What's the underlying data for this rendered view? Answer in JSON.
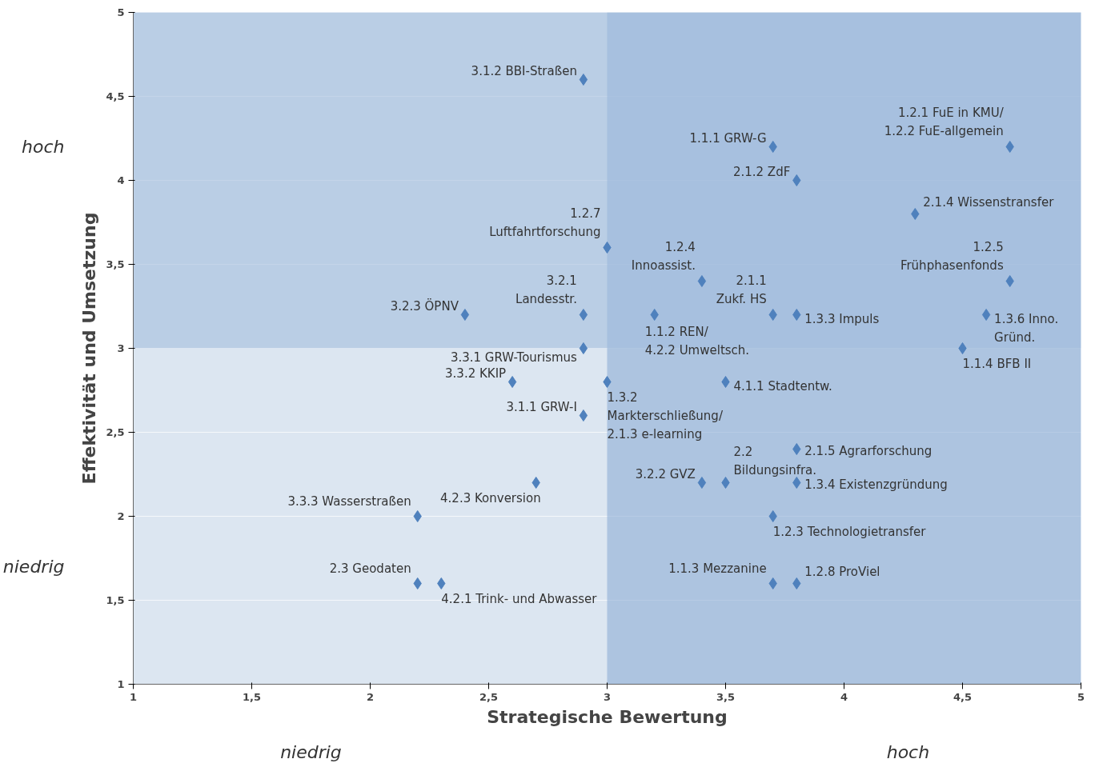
{
  "chart_data": {
    "type": "scatter",
    "xlabel": "Strategische Bewertung",
    "ylabel": "Effektivität und Umsetzung",
    "x": [
      2.9,
      3.7,
      4.7,
      3.8,
      4.3,
      3.0,
      3.4,
      4.7,
      3.7,
      3.8,
      2.4,
      2.9,
      3.2,
      4.6,
      2.9,
      4.5,
      2.6,
      3.0,
      3.5,
      2.9,
      3.8,
      2.7,
      3.4,
      3.5,
      3.8,
      2.2,
      3.7,
      2.2,
      2.3,
      3.7,
      3.8
    ],
    "series": [
      {
        "color": "#4f81bd",
        "values": [
          4.6,
          4.2,
          4.2,
          4.0,
          3.8,
          3.6,
          3.4,
          3.4,
          3.2,
          3.2,
          3.2,
          3.2,
          3.2,
          3.2,
          3.0,
          3.0,
          2.8,
          2.8,
          2.8,
          2.6,
          2.4,
          2.2,
          2.2,
          2.2,
          2.2,
          2.0,
          2.0,
          1.6,
          1.6,
          1.6,
          1.6
        ]
      }
    ],
    "marker": "diamond",
    "grid": "y",
    "xlim": [
      1,
      5
    ],
    "ylim": [
      1,
      5
    ],
    "xticks": [
      1,
      {
        "value": 1.5,
        "label": "1,5"
      },
      2,
      {
        "value": 2.5,
        "label": "2,5"
      },
      3,
      {
        "value": 3.5,
        "label": "3,5"
      },
      4,
      {
        "value": 4.5,
        "label": "4,5"
      },
      5
    ],
    "yticks": [
      1,
      {
        "value": 1.5,
        "label": "1,5"
      },
      2,
      {
        "value": 2.5,
        "label": "2,5"
      },
      3,
      {
        "value": 3.5,
        "label": "3,5"
      },
      4,
      {
        "value": 4.5,
        "label": "4,5"
      },
      5
    ],
    "bands": [
      {
        "axis": "x",
        "from": 3,
        "to": 5,
        "color": "#8eaed5"
      },
      {
        "axis": "y",
        "from": 3,
        "to": 5,
        "color": "#a3bedd"
      }
    ],
    "annotations": [
      {
        "text": "3.1.2 BBI-Straßen",
        "x": 2.9,
        "y": 4.6
      },
      {
        "text": "1.1.1 GRW-G",
        "x": 3.7,
        "y": 4.2
      },
      {
        "text": "1.2.1 FuE in KMU/\n1.2.2 FuE-allgemein",
        "x": 4.7,
        "y": 4.2
      },
      {
        "text": "2.1.2 ZdF",
        "x": 3.8,
        "y": 4.0
      },
      {
        "text": "2.1.4 Wissenstransfer",
        "x": 4.3,
        "y": 3.8
      },
      {
        "text": "1.2.7\nLuftfahrtforschung",
        "x": 3.0,
        "y": 3.6
      },
      {
        "text": "1.2.4\nInnoassist.",
        "x": 3.4,
        "y": 3.4
      },
      {
        "text": "1.2.5\nFrühphasenfonds",
        "x": 4.7,
        "y": 3.4
      },
      {
        "text": "2.1.1\nZukf. HS",
        "x": 3.7,
        "y": 3.2
      },
      {
        "text": "1.3.3 Impuls",
        "x": 3.8,
        "y": 3.2
      },
      {
        "text": "3.2.3 ÖPNV",
        "x": 2.4,
        "y": 3.2
      },
      {
        "text": "3.2.1\nLandesstr.",
        "x": 2.9,
        "y": 3.2
      },
      {
        "text": "1.1.2 REN/\n4.2.2  Umweltsch.",
        "x": 3.2,
        "y": 3.2
      },
      {
        "text": "1.3.6 Inno.\nGründ.",
        "x": 4.6,
        "y": 3.2
      },
      {
        "text": "3.3.1 GRW-Tourismus",
        "x": 2.9,
        "y": 3.0
      },
      {
        "text": "1.1.4 BFB II",
        "x": 4.5,
        "y": 3.0
      },
      {
        "text": "3.3.2 KKIP",
        "x": 2.6,
        "y": 2.8
      },
      {
        "text": "1.3.2\nMarkterschließung/\n2.1.3 e-learning",
        "x": 3.0,
        "y": 2.8
      },
      {
        "text": "4.1.1 Stadtentw.",
        "x": 3.5,
        "y": 2.8
      },
      {
        "text": "3.1.1 GRW-I",
        "x": 2.9,
        "y": 2.6
      },
      {
        "text": "2.1.5 Agrarforschung",
        "x": 3.8,
        "y": 2.4
      },
      {
        "text": "4.2.3 Konversion",
        "x": 2.7,
        "y": 2.2
      },
      {
        "text": "3.2.2 GVZ",
        "x": 3.4,
        "y": 2.2
      },
      {
        "text": "2.2\nBildungsinfra.",
        "x": 3.5,
        "y": 2.2
      },
      {
        "text": "1.3.4 Existenzgründung",
        "x": 3.8,
        "y": 2.2
      },
      {
        "text": "3.3.3 Wasserstraßen",
        "x": 2.2,
        "y": 2.0
      },
      {
        "text": "1.2.3 Technologietransfer",
        "x": 3.7,
        "y": 2.0
      },
      {
        "text": "2.3 Geodaten",
        "x": 2.2,
        "y": 1.6
      },
      {
        "text": "4.2.1 Trink- und Abwasser",
        "x": 2.3,
        "y": 1.6
      },
      {
        "text": "1.1.3 Mezzanine",
        "x": 3.7,
        "y": 1.6
      },
      {
        "text": "1.2.8 ProViel",
        "x": 3.8,
        "y": 1.6
      },
      "hoch",
      "niedrig",
      "niedrig",
      "hoch"
    ]
  }
}
